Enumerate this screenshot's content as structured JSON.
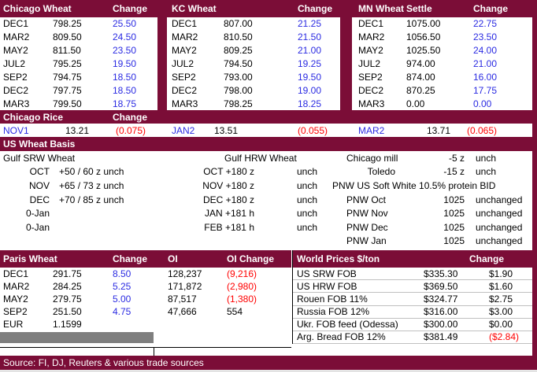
{
  "report": {
    "futures": {
      "tables": [
        {
          "title": "Chicago Wheat",
          "value_header": "",
          "change_header": "Change",
          "rows": [
            [
              "DEC1",
              "798.25",
              "25.50"
            ],
            [
              "MAR2",
              "809.50",
              "24.50"
            ],
            [
              "MAY2",
              "811.50",
              "23.50"
            ],
            [
              "JUL2",
              "795.25",
              "19.50"
            ],
            [
              "SEP2",
              "794.75",
              "18.50"
            ],
            [
              "DEC2",
              "797.75",
              "18.50"
            ],
            [
              "MAR3",
              "799.50",
              "18.75"
            ]
          ]
        },
        {
          "title": "KC Wheat",
          "value_header": "",
          "change_header": "Change",
          "rows": [
            [
              "DEC1",
              "807.00",
              "21.25"
            ],
            [
              "MAR2",
              "810.50",
              "21.50"
            ],
            [
              "MAY2",
              "809.25",
              "21.00"
            ],
            [
              "JUL2",
              "794.50",
              "19.25"
            ],
            [
              "SEP2",
              "793.00",
              "19.50"
            ],
            [
              "DEC2",
              "798.00",
              "19.00"
            ],
            [
              "MAR3",
              "798.25",
              "18.25"
            ]
          ]
        },
        {
          "title": "MN Wheat",
          "value_header": "Settle",
          "change_header": "Change",
          "rows": [
            [
              "DEC1",
              "1075.00",
              "22.75"
            ],
            [
              "MAR2",
              "1056.50",
              "23.50"
            ],
            [
              "MAY2",
              "1025.50",
              "24.00"
            ],
            [
              "JUL2",
              "974.00",
              "21.00"
            ],
            [
              "SEP2",
              "874.00",
              "16.00"
            ],
            [
              "DEC2",
              "870.25",
              "17.75"
            ],
            [
              "MAR3",
              "0.00",
              "0.00"
            ]
          ]
        }
      ]
    },
    "rice": {
      "title": "Chicago Rice",
      "change_header": "Change",
      "quotes": [
        [
          "NOV1",
          "13.21",
          "(0.075)"
        ],
        [
          "JAN2",
          "13.51",
          "(0.055)"
        ],
        [
          "MAR2",
          "13.71",
          "(0.065)"
        ]
      ]
    },
    "basis": {
      "title": "US Wheat Basis",
      "left_section_label": "Gulf SRW Wheat",
      "mid_section_label": "Gulf HRW Wheat",
      "pnw_bid_label": "PNW US Soft White 10.5% protein BID",
      "rows": [
        [
          "",
          "",
          "",
          "",
          "Chicago mill",
          "-5 z",
          "unch"
        ],
        [
          "OCT",
          "+50 / 60 z  unch",
          "OCT +180 z",
          "unch",
          "Toledo",
          "-15 z",
          "unch"
        ],
        [
          "NOV",
          "+65 / 73 z  unch",
          "NOV +180 z",
          "unch",
          "",
          "",
          ""
        ],
        [
          "DEC",
          "+70 / 85 z  unch",
          "DEC +180 z",
          "unch",
          "PNW Oct",
          "1025",
          "unchanged"
        ],
        [
          "0-Jan",
          "",
          "JAN  +181 h",
          "unch",
          "PNW Nov",
          "1025",
          "unchanged"
        ],
        [
          "0-Jan",
          "",
          "FEB  +181 h",
          "unch",
          "PNW Dec",
          "1025",
          "unchanged"
        ],
        [
          "",
          "",
          "",
          "",
          "PNW Jan",
          "1025",
          "unchanged"
        ]
      ]
    },
    "paris": {
      "title": "Paris Wheat",
      "change_header": "Change",
      "oi_header": "OI",
      "oi_change_header": "OI Change",
      "rows": [
        [
          "DEC1",
          "291.75",
          "8.50",
          "128,237",
          "(9,216)"
        ],
        [
          "MAR2",
          "284.25",
          "5.25",
          "171,872",
          "(2,980)"
        ],
        [
          "MAY2",
          "279.75",
          "5.00",
          "87,517",
          "(1,380)"
        ],
        [
          "SEP2",
          "251.50",
          "4.75",
          "47,666",
          "554"
        ],
        [
          "EUR",
          "1.1599",
          "",
          "",
          ""
        ]
      ]
    },
    "world": {
      "title": "World Prices $/ton",
      "change_header": "Change",
      "rows": [
        [
          "US SRW FOB",
          "$335.30",
          "$1.90"
        ],
        [
          "US HRW FOB",
          "$369.50",
          "$1.60"
        ],
        [
          "Rouen FOB 11%",
          "$324.77",
          "$2.75"
        ],
        [
          "Russia FOB 12%",
          "$316.00",
          "$3.00"
        ],
        [
          "Ukr. FOB feed (Odessa)",
          "$300.00",
          "$0.00"
        ],
        [
          "Arg. Bread FOB 12%",
          "$381.49",
          "($2.84)"
        ]
      ]
    },
    "source": "Source: FI, DJ, Reuters & various trade sources"
  },
  "colors": {
    "maroon": "#7B0D37",
    "blue": "#2B2BE2",
    "negative_red": "#FF0000",
    "gridline": "#C0C0C0",
    "selection_gray": "#7F7F7F"
  }
}
